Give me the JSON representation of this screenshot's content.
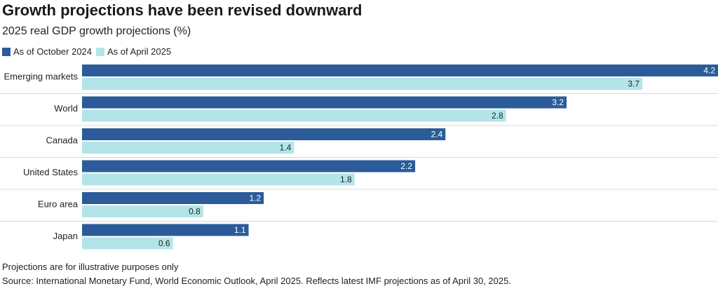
{
  "chart_data": {
    "type": "bar",
    "orientation": "horizontal",
    "title": "Growth projections have been revised downward",
    "subtitle": "2025 real GDP growth projections (%)",
    "categories": [
      "Emerging markets",
      "World",
      "Canada",
      "United States",
      "Euro area",
      "Japan"
    ],
    "series": [
      {
        "name": "As of October 2024",
        "values": [
          4.2,
          3.2,
          2.4,
          2.2,
          1.2,
          1.1
        ],
        "color": "#2b5c99"
      },
      {
        "name": "As of April 2025",
        "values": [
          3.7,
          2.8,
          1.4,
          1.8,
          0.8,
          0.6
        ],
        "color": "#b3e5e8"
      }
    ],
    "xlim": [
      0,
      4.2
    ],
    "grid": false,
    "legend_position": "top-left",
    "note": "Projections are for illustrative purposes only",
    "source": "Source: International Monetary Fund, World Economic Outlook, April 2025. Reflects latest IMF projections as of April 30, 2025."
  }
}
